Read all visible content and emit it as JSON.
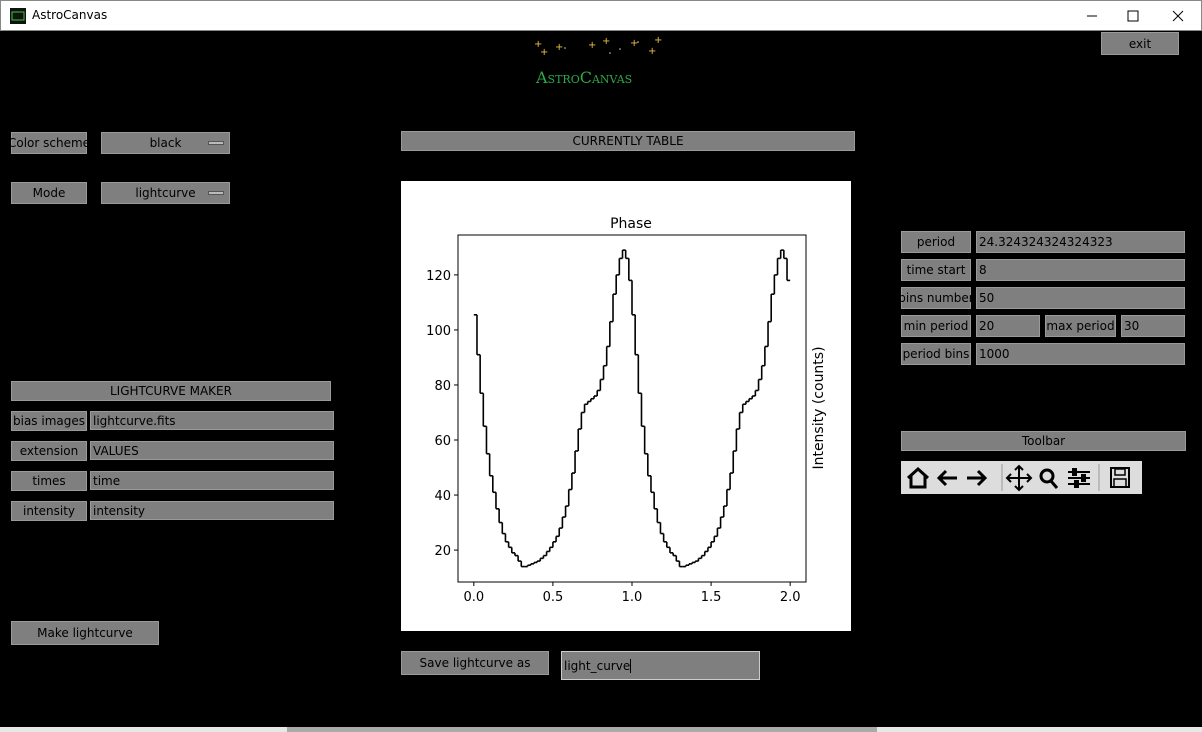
{
  "window": {
    "title": "AstroCanvas"
  },
  "logo": "AstroCanvas",
  "exit": "exit",
  "color_scheme": {
    "label": "Color scheme",
    "value": "black"
  },
  "mode": {
    "label": "Mode",
    "value": "lightcurve"
  },
  "table_header": "CURRENTLY TABLE",
  "lightcurve_maker": {
    "title": "LIGHTCURVE MAKER",
    "fields": [
      {
        "label": "bias images",
        "value": "lightcurve.fits"
      },
      {
        "label": "extension",
        "value": "VALUES"
      },
      {
        "label": "times",
        "value": "time"
      },
      {
        "label": "intensity",
        "value": "intensity"
      }
    ],
    "button": "Make lightcurve"
  },
  "save": {
    "button": "Save lightcurve as",
    "value": "light_curve"
  },
  "params": [
    {
      "label": "period",
      "value": "24.324324324324323"
    },
    {
      "label": "time start",
      "value": "8"
    },
    {
      "label": "bins number",
      "value": "50"
    },
    {
      "label": "min period",
      "value": "20",
      "label2": "max period",
      "value2": "30"
    },
    {
      "label": "period bins",
      "value": "1000"
    }
  ],
  "toolbar": {
    "title": "Toolbar"
  },
  "chart_data": {
    "type": "line",
    "title": "Phase",
    "y_label": "Intensity (counts)",
    "color": "#000000",
    "step": true,
    "x": [
      0,
      0.02,
      0.04,
      0.06,
      0.08,
      0.1,
      0.12,
      0.14,
      0.16,
      0.18,
      0.2,
      0.22,
      0.24,
      0.26,
      0.28,
      0.3,
      0.32,
      0.34,
      0.36,
      0.38,
      0.4,
      0.42,
      0.44,
      0.46,
      0.48,
      0.5,
      0.52,
      0.54,
      0.56,
      0.58,
      0.6,
      0.62,
      0.64,
      0.66,
      0.68,
      0.7,
      0.72,
      0.74,
      0.76,
      0.78,
      0.8,
      0.82,
      0.84,
      0.86,
      0.88,
      0.9,
      0.92,
      0.94,
      0.96,
      0.98,
      1,
      1.02,
      1.04,
      1.06,
      1.08,
      1.1,
      1.12,
      1.14,
      1.16,
      1.18,
      1.2,
      1.22,
      1.24,
      1.26,
      1.28,
      1.3,
      1.32,
      1.34,
      1.36,
      1.38,
      1.4,
      1.42,
      1.44,
      1.46,
      1.48,
      1.5,
      1.52,
      1.54,
      1.56,
      1.58,
      1.6,
      1.62,
      1.64,
      1.66,
      1.68,
      1.7,
      1.72,
      1.74,
      1.76,
      1.78,
      1.8,
      1.82,
      1.84,
      1.86,
      1.88,
      1.9,
      1.92,
      1.94,
      1.96,
      1.98
    ],
    "values": [
      105.5,
      91,
      77,
      65,
      55,
      47,
      41,
      35,
      30,
      26,
      23,
      21,
      19,
      18,
      16,
      14,
      14,
      14.5,
      15,
      15.5,
      16,
      17,
      18,
      19.5,
      21,
      23,
      25,
      28,
      32,
      36,
      42,
      48,
      56,
      64,
      70,
      73,
      74,
      75,
      76,
      78,
      82,
      87,
      94,
      103,
      113,
      120,
      126,
      129,
      126,
      118,
      105.5,
      91,
      77,
      65,
      55,
      47,
      41,
      35,
      30,
      26,
      23,
      21,
      19,
      18,
      16,
      14,
      14,
      14.5,
      15,
      15.5,
      16,
      17,
      18,
      19.5,
      21,
      23,
      25,
      28,
      32,
      36,
      42,
      48,
      56,
      64,
      70,
      73,
      74,
      75,
      76,
      78,
      82,
      87,
      94,
      103,
      113,
      120,
      126,
      129,
      126,
      118
    ],
    "xlim": [
      -0.1,
      2.1
    ],
    "ylim": [
      8.4,
      134.5
    ],
    "xticks": [
      {
        "value": 0,
        "label": "0.0"
      },
      0.5,
      {
        "value": 1,
        "label": "1.0"
      },
      1.5,
      {
        "value": 2,
        "label": "2.0"
      }
    ],
    "yticks": [
      20,
      40,
      60,
      80,
      100,
      120
    ]
  }
}
